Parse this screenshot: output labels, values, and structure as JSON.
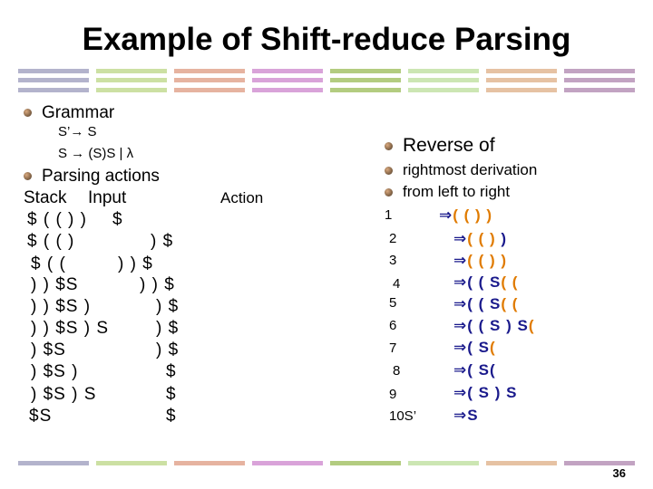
{
  "title": "Example of Shift-reduce Parsing",
  "stripe_colors": [
    "#b3b3cc",
    "#cce0a3",
    "#e6b3a0",
    "#d9a3d9",
    "#b3cc80",
    "#cce6b3",
    "#e6c2a3",
    "#c2a3c2"
  ],
  "grammar": {
    "heading": "Grammar",
    "rule1": "S’→ S",
    "rule2": "S → (S)S | λ",
    "parsing_actions": "Parsing actions"
  },
  "table": {
    "stack_header": "Stack",
    "input_header": "Input",
    "action_header": "Action",
    "rows": [
      {
        "stack": "$ ( ( ) )",
        "input": "$"
      },
      {
        "stack": "$ ( ( )",
        "input": ") $"
      },
      {
        "stack": "$ ( (",
        "input": ") ) $"
      },
      {
        "stack": ") ) $S",
        "input": ") ) $"
      },
      {
        "stack": ") ) $S )",
        "input": ") $"
      },
      {
        "stack": ") ) $S ) S",
        "input": ") $"
      },
      {
        "stack": ") $S",
        "input": ") $"
      },
      {
        "stack": ") $S )",
        "input": "$"
      },
      {
        "stack": ") $S ) S",
        "input": "$"
      },
      {
        "stack": "$S",
        "input": "$"
      }
    ]
  },
  "reverse": {
    "heading": "Reverse of",
    "line2": "rightmost derivation",
    "line3": "from left to right"
  },
  "derivation": {
    "arrow": "⇒",
    "steps": [
      {
        "num": "1",
        "a": "( ( ) )",
        "b": ""
      },
      {
        "num": "2",
        "a": "( ( )",
        "b": ")"
      },
      {
        "num": "3",
        "a": "( ( ) )",
        "b": ""
      },
      {
        "num": "4",
        "a": "( ( S",
        "b": "( ("
      },
      {
        "num": "5",
        "a": "( ( S",
        "b": "( ("
      },
      {
        "num": "6",
        "a": "( ( S ) S",
        "b": "("
      },
      {
        "num": "7",
        "a": "( S",
        "b": "("
      },
      {
        "num": "8",
        "a": "( S",
        "b": "("
      },
      {
        "num": "9",
        "a": "( S ) S",
        "b": ""
      },
      {
        "num": "10S’",
        "a": "S",
        "b": ""
      }
    ]
  },
  "page_number": "36"
}
